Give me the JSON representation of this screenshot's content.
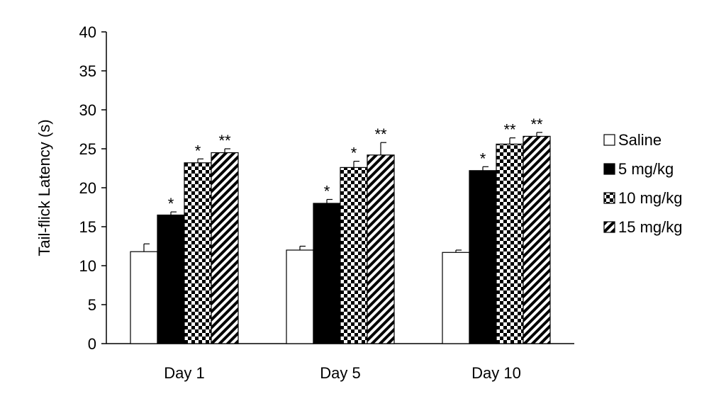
{
  "chart_data": {
    "type": "bar",
    "title": "",
    "xlabel": "",
    "ylabel": "Tail-flick Latency (s)",
    "ylim": [
      0,
      40
    ],
    "yticks": [
      0,
      5,
      10,
      15,
      20,
      25,
      30,
      35,
      40
    ],
    "categories": [
      "Day 1",
      "Day 5",
      "Day 10"
    ],
    "legend_position": "right",
    "grid": false,
    "series": [
      {
        "name": "Saline",
        "pattern": "white",
        "values": [
          11.8,
          12.0,
          11.7
        ],
        "errors": [
          1.0,
          0.5,
          0.3
        ],
        "sig": [
          "",
          "",
          ""
        ]
      },
      {
        "name": "5 mg/kg",
        "pattern": "black",
        "values": [
          16.5,
          18.0,
          22.2
        ],
        "errors": [
          0.4,
          0.5,
          0.5
        ],
        "sig": [
          "*",
          "*",
          "*"
        ]
      },
      {
        "name": "10 mg/kg",
        "pattern": "checker",
        "values": [
          23.2,
          22.6,
          25.6
        ],
        "errors": [
          0.5,
          0.8,
          0.8
        ],
        "sig": [
          "*",
          "*",
          "**"
        ]
      },
      {
        "name": "15 mg/kg",
        "pattern": "diagonal",
        "values": [
          24.5,
          24.2,
          26.6
        ],
        "errors": [
          0.5,
          1.6,
          0.5
        ],
        "sig": [
          "**",
          "**",
          "**"
        ]
      }
    ]
  }
}
